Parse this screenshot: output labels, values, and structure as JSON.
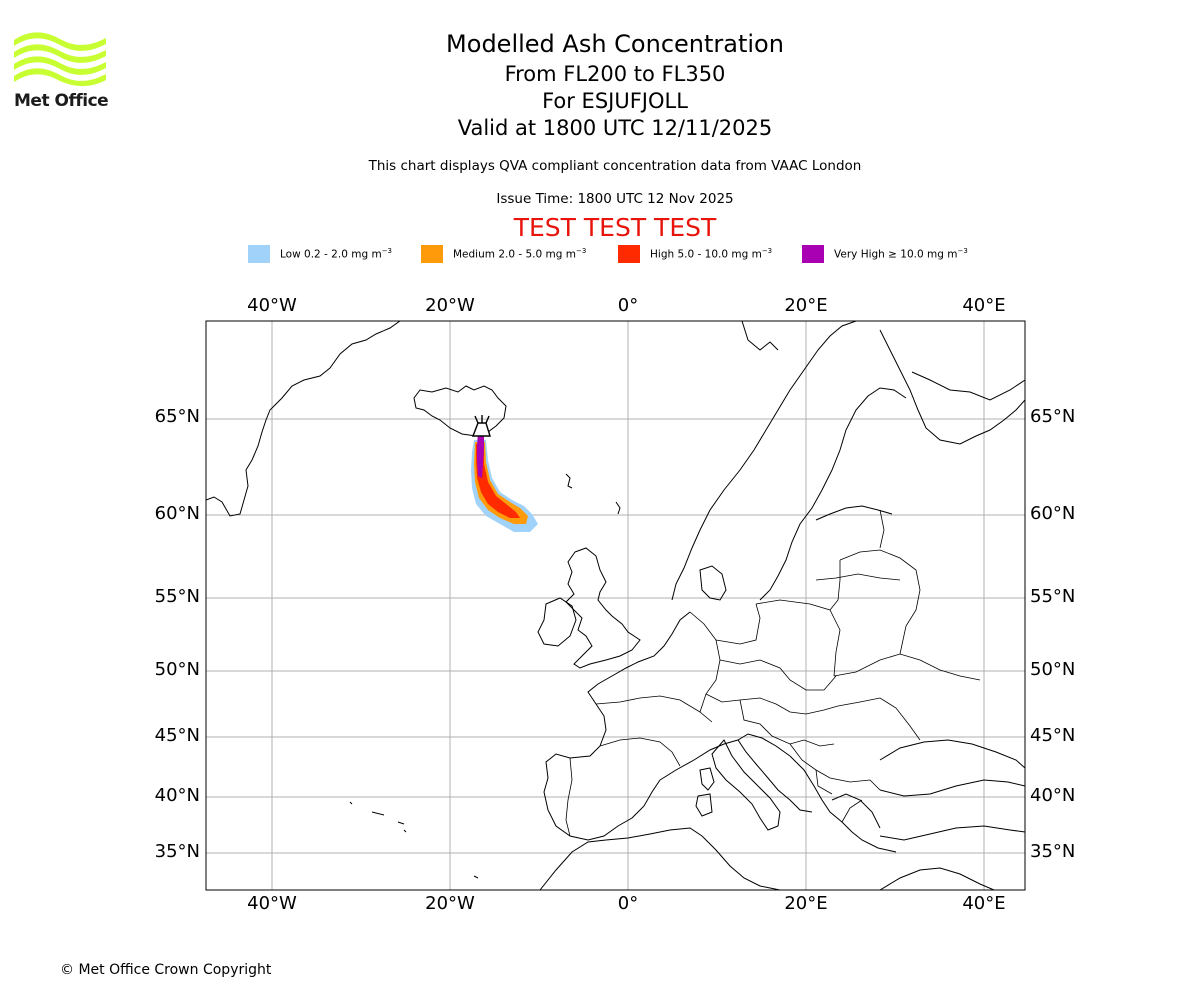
{
  "header": {
    "title": "Modelled Ash Concentration",
    "flight_levels": "From FL200 to FL350",
    "volcano": "For ESJUFJOLL",
    "valid_time": "Valid at 1800 UTC 12/11/2025",
    "compliance_note": "This chart displays QVA compliant concentration data from VAAC London",
    "issue_time": "Issue Time: 1800 UTC 12 Nov 2025",
    "test_banner": "TEST TEST TEST"
  },
  "logo": {
    "text": "Met Office",
    "icon": "met-office-wave-logo",
    "color": "#c8ff32"
  },
  "legend": [
    {
      "label": "Low 0.2 - 2.0 mg m",
      "exp": "−3",
      "color": "#a0d2fa"
    },
    {
      "label": "Medium 2.0 - 5.0 mg m",
      "exp": "−3",
      "color": "#ff9a0a"
    },
    {
      "label": "High 5.0 - 10.0 mg m",
      "exp": "−3",
      "color": "#ff2a00"
    },
    {
      "label": "Very High ≥ 10.0 mg m",
      "exp": "−3",
      "color": "#aa00b4"
    }
  ],
  "map": {
    "lon_labels": [
      "40°W",
      "20°W",
      "0°",
      "20°E",
      "40°E"
    ],
    "lat_labels": [
      "65°N",
      "60°N",
      "55°N",
      "50°N",
      "45°N",
      "40°N",
      "35°N"
    ],
    "gridlines": true,
    "volcano_marker_icon": "volcano-icon"
  },
  "footer": {
    "copyright": "© Met Office Crown Copyright"
  }
}
